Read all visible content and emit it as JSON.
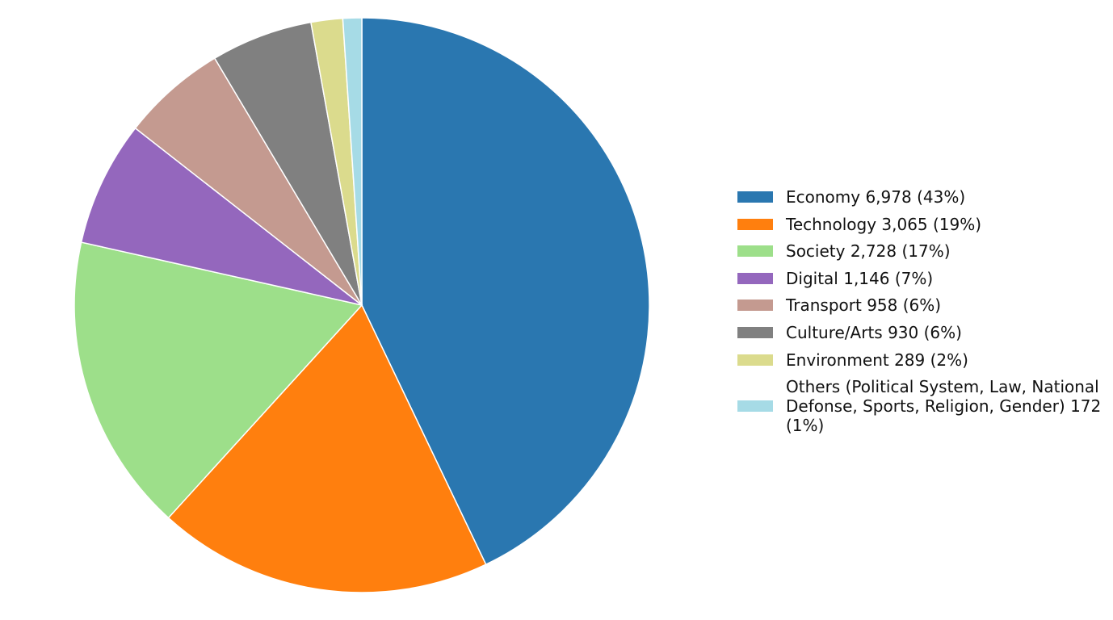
{
  "chart_data": {
    "type": "pie",
    "categories": [
      "Economy 6,978 (43%)",
      "Technology 3,065 (19%)",
      "Society 2,728 (17%)",
      "Digital 1,146 (7%)",
      "Transport 958 (6%)",
      "Culture/Arts 930 (6%)",
      "Environment 289 (2%)",
      "Others (Political System, Law, National Defonse, Sports, Religion, Gender) 172 (1%)"
    ],
    "values": [
      6978,
      3065,
      2728,
      1146,
      958,
      930,
      289,
      172
    ],
    "colors": [
      "#2a77b0",
      "#ff7f0e",
      "#9ddf8a",
      "#9467bd",
      "#c49a90",
      "#808080",
      "#dbdb8d",
      "#a6dbe6"
    ],
    "start_angle": "top",
    "direction": "clockwise",
    "legend": "right"
  }
}
